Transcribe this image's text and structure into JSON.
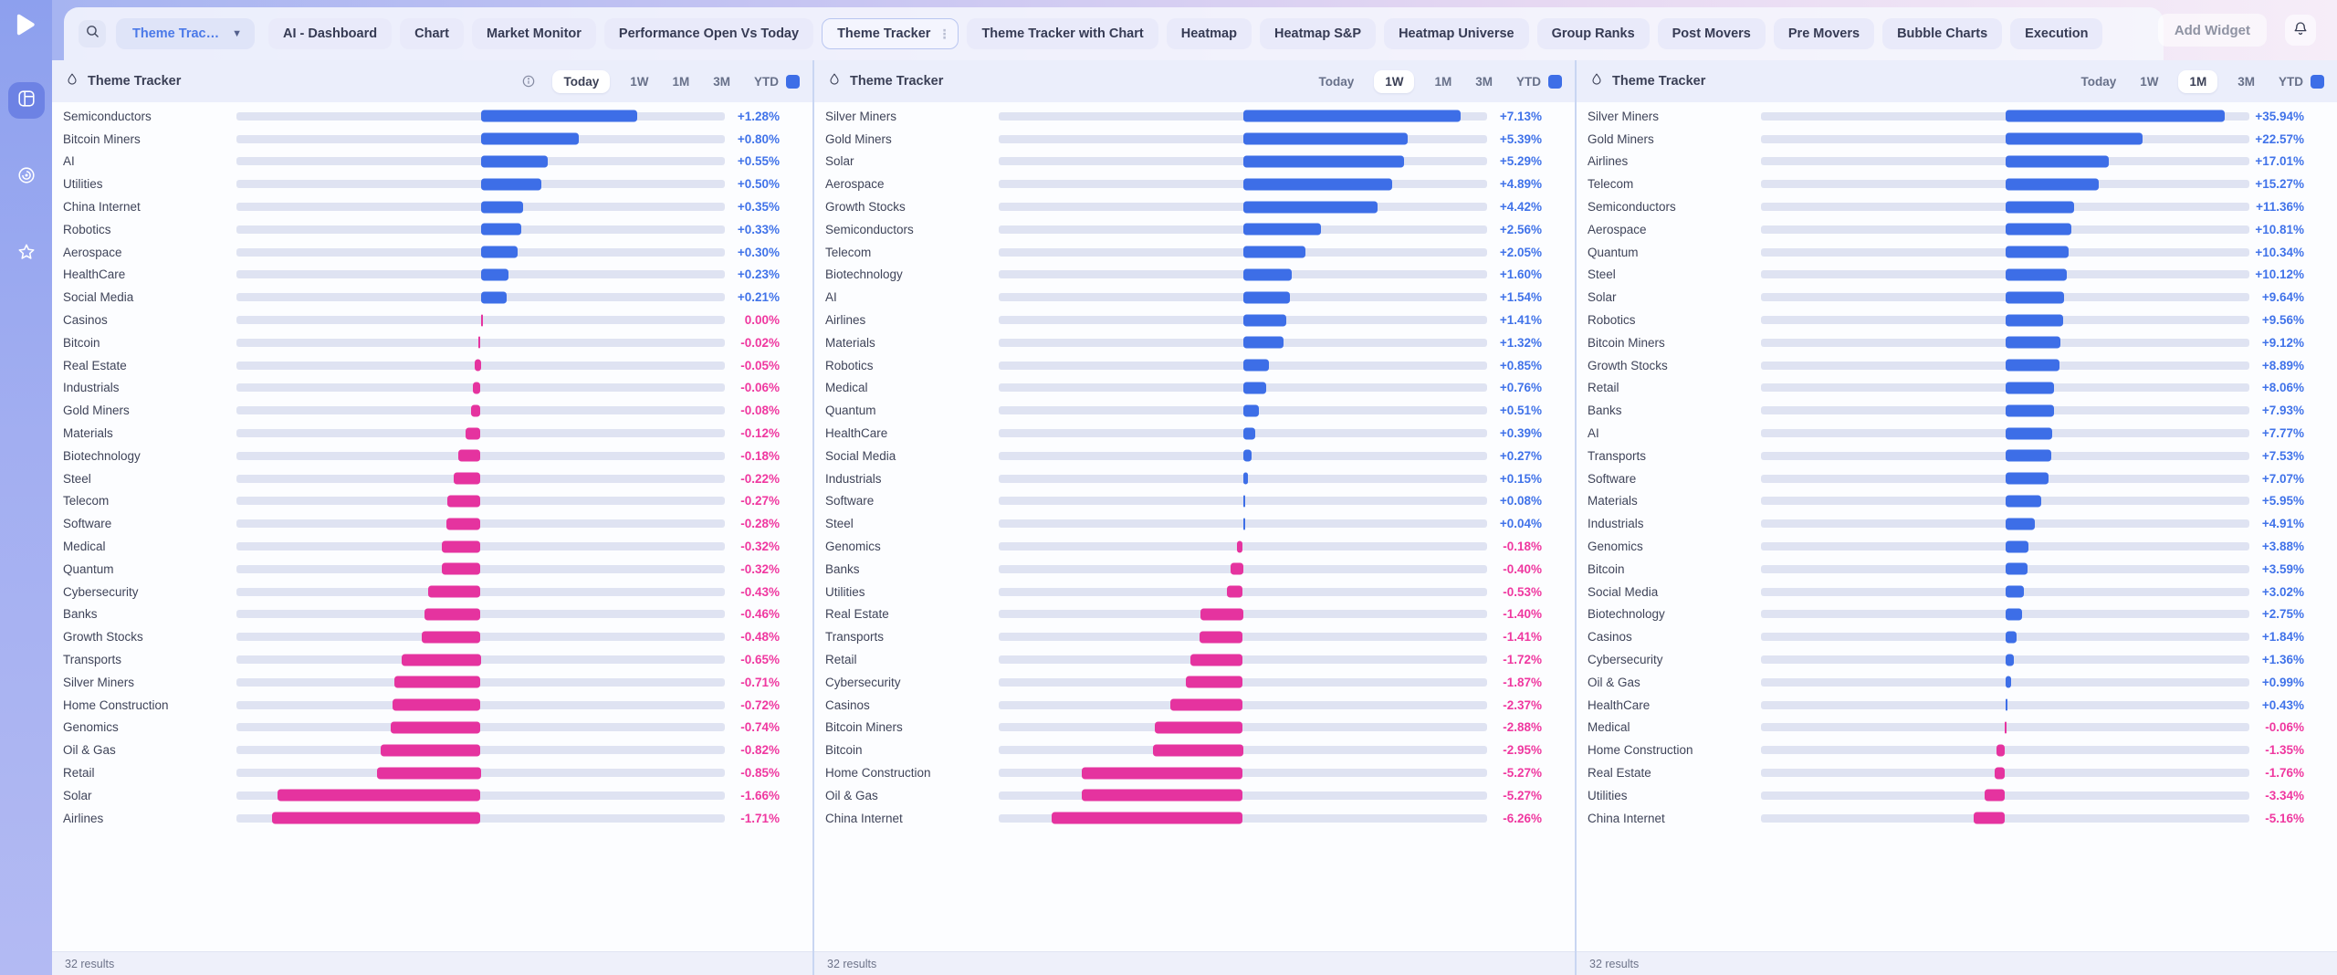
{
  "colors": {
    "positive_bar": "#3d6ee7",
    "negative_bar": "#e5339f",
    "positive_text": "#4173e9",
    "negative_text": "#ef38a0",
    "track": "#dfe3f2",
    "header_square": "#3d6ee7"
  },
  "sidebar": {
    "items": [
      {
        "icon": "dashboard-icon",
        "active": true
      },
      {
        "icon": "target-icon",
        "active": false
      },
      {
        "icon": "star-icon",
        "active": false
      }
    ]
  },
  "topbar": {
    "widget_dropdown_label": "Theme Trac…",
    "tabs": [
      "AI - Dashboard",
      "Chart",
      "Market Monitor",
      "Performance Open Vs Today",
      "Theme Tracker",
      "Theme Tracker with Chart",
      "Heatmap",
      "Heatmap S&P",
      "Heatmap Universe",
      "Group Ranks",
      "Post Movers",
      "Pre Movers",
      "Bubble Charts",
      "Execution"
    ],
    "active_tab": "Theme Tracker",
    "add_widget_label": "Add Widget"
  },
  "panels": [
    {
      "title": "Theme Tracker",
      "ranges": [
        "Today",
        "1W",
        "1M",
        "3M",
        "YTD"
      ],
      "active_range": "Today",
      "has_info_icon": true,
      "results_text": "32 results"
    },
    {
      "title": "Theme Tracker",
      "ranges": [
        "Today",
        "1W",
        "1M",
        "3M",
        "YTD"
      ],
      "active_range": "1W",
      "has_info_icon": false,
      "results_text": "32 results"
    },
    {
      "title": "Theme Tracker",
      "ranges": [
        "Today",
        "1W",
        "1M",
        "3M",
        "YTD"
      ],
      "active_range": "1M",
      "has_info_icon": false,
      "results_text": "32 results"
    }
  ],
  "chart_data": [
    {
      "type": "bar",
      "orientation": "horizontal-diverging",
      "title": "Theme Tracker",
      "range": "Today",
      "value_unit": "%",
      "axis_max_abs": 2,
      "legend_position": "none",
      "grid": false,
      "categories": [
        "Semiconductors",
        "Bitcoin Miners",
        "AI",
        "Utilities",
        "China Internet",
        "Robotics",
        "Aerospace",
        "HealthCare",
        "Social Media",
        "Casinos",
        "Bitcoin",
        "Real Estate",
        "Industrials",
        "Gold Miners",
        "Materials",
        "Biotechnology",
        "Steel",
        "Telecom",
        "Software",
        "Medical",
        "Quantum",
        "Cybersecurity",
        "Banks",
        "Growth Stocks",
        "Transports",
        "Silver Miners",
        "Home Construction",
        "Genomics",
        "Oil & Gas",
        "Retail",
        "Solar",
        "Airlines"
      ],
      "values": [
        1.28,
        0.8,
        0.55,
        0.5,
        0.35,
        0.33,
        0.3,
        0.23,
        0.21,
        0.0,
        -0.02,
        -0.05,
        -0.06,
        -0.08,
        -0.12,
        -0.18,
        -0.22,
        -0.27,
        -0.28,
        -0.32,
        -0.32,
        -0.43,
        -0.46,
        -0.48,
        -0.65,
        -0.71,
        -0.72,
        -0.74,
        -0.82,
        -0.85,
        -1.66,
        -1.71
      ]
    },
    {
      "type": "bar",
      "orientation": "horizontal-diverging",
      "title": "Theme Tracker",
      "range": "1W",
      "value_unit": "%",
      "axis_max_abs": 8,
      "legend_position": "none",
      "grid": false,
      "categories": [
        "Silver Miners",
        "Gold Miners",
        "Solar",
        "Aerospace",
        "Growth Stocks",
        "Semiconductors",
        "Telecom",
        "Biotechnology",
        "AI",
        "Airlines",
        "Materials",
        "Robotics",
        "Medical",
        "Quantum",
        "HealthCare",
        "Social Media",
        "Industrials",
        "Software",
        "Steel",
        "Genomics",
        "Banks",
        "Utilities",
        "Real Estate",
        "Transports",
        "Retail",
        "Cybersecurity",
        "Casinos",
        "Bitcoin Miners",
        "Bitcoin",
        "Home Construction",
        "Oil & Gas",
        "China Internet"
      ],
      "values": [
        7.13,
        5.39,
        5.29,
        4.89,
        4.42,
        2.56,
        2.05,
        1.6,
        1.54,
        1.41,
        1.32,
        0.85,
        0.76,
        0.51,
        0.39,
        0.27,
        0.15,
        0.08,
        0.04,
        -0.18,
        -0.4,
        -0.53,
        -1.4,
        -1.41,
        -1.72,
        -1.87,
        -2.37,
        -2.88,
        -2.95,
        -5.27,
        -5.27,
        -6.26
      ]
    },
    {
      "type": "bar",
      "orientation": "horizontal-diverging",
      "title": "Theme Tracker",
      "range": "1M",
      "value_unit": "%",
      "axis_max_abs": 40,
      "legend_position": "none",
      "grid": false,
      "categories": [
        "Silver Miners",
        "Gold Miners",
        "Airlines",
        "Telecom",
        "Semiconductors",
        "Aerospace",
        "Quantum",
        "Steel",
        "Solar",
        "Robotics",
        "Bitcoin Miners",
        "Growth Stocks",
        "Retail",
        "Banks",
        "AI",
        "Transports",
        "Software",
        "Materials",
        "Industrials",
        "Genomics",
        "Bitcoin",
        "Social Media",
        "Biotechnology",
        "Casinos",
        "Cybersecurity",
        "Oil & Gas",
        "HealthCare",
        "Medical",
        "Home Construction",
        "Real Estate",
        "Utilities",
        "China Internet"
      ],
      "values": [
        35.94,
        22.57,
        17.01,
        15.27,
        11.36,
        10.81,
        10.34,
        10.12,
        9.64,
        9.56,
        9.12,
        8.89,
        8.06,
        7.93,
        7.77,
        7.53,
        7.07,
        5.95,
        4.91,
        3.88,
        3.59,
        3.02,
        2.75,
        1.84,
        1.36,
        0.99,
        0.43,
        -0.06,
        -1.35,
        -1.76,
        -3.34,
        -5.16
      ]
    }
  ]
}
